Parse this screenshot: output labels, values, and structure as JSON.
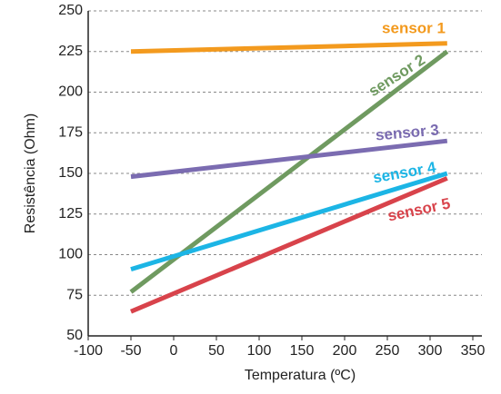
{
  "chart_data": {
    "type": "line",
    "x_label": "Temperatura (ºC)",
    "y_label": "Resistência (Ohm)",
    "x": [
      -50,
      320
    ],
    "series": [
      {
        "name": "sensor 1",
        "color": "#f39a1e",
        "values": [
          225,
          230
        ]
      },
      {
        "name": "sensor 2",
        "color": "#6f9a60",
        "values": [
          77,
          225
        ]
      },
      {
        "name": "sensor 3",
        "color": "#7b6cb1",
        "values": [
          148,
          170
        ]
      },
      {
        "name": "sensor 4",
        "color": "#1cb5e5",
        "values": [
          91,
          150
        ]
      },
      {
        "name": "sensor 5",
        "color": "#d8434b",
        "values": [
          65,
          147
        ]
      }
    ],
    "xlim": [
      -100,
      350
    ],
    "xticks": [
      -100,
      -50,
      0,
      50,
      100,
      150,
      200,
      250,
      300,
      350
    ],
    "ylim": [
      50,
      250
    ],
    "yticks": [
      50,
      75,
      100,
      125,
      150,
      175,
      200,
      225,
      250
    ],
    "grid": true
  }
}
